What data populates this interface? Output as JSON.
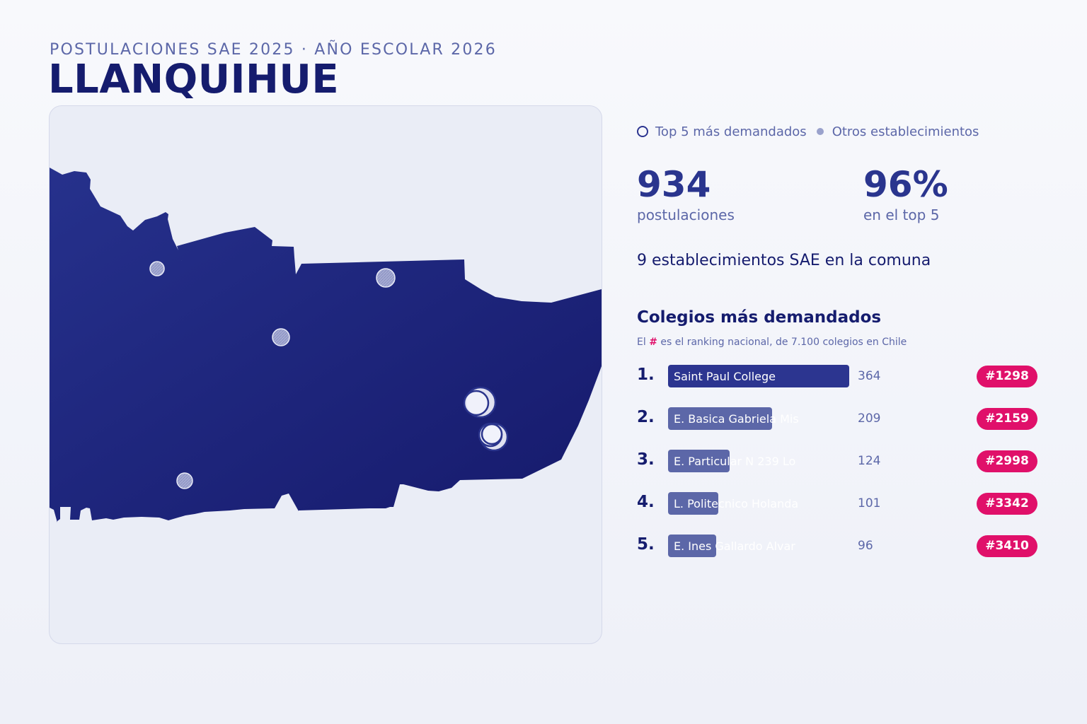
{
  "header": {
    "supertitle": "POSTULACIONES SAE 2025 · AÑO ESCOLAR 2026",
    "title": "LLANQUIHUE"
  },
  "legend": {
    "top5_label": "Top 5 más demandados",
    "others_label": "Otros establecimientos"
  },
  "stats": {
    "applications_value": "934",
    "applications_label": "postulaciones",
    "top5_share_value": "96%",
    "top5_share_label": "en el top 5",
    "establishments_line": "9 establecimientos SAE en la comuna"
  },
  "ranking": {
    "title": "Colegios más demandados",
    "note_prefix": "El",
    "note_hash": "#",
    "note_suffix": "es el ranking nacional, de 7.100 colegios en Chile",
    "max_value": 364,
    "items": [
      {
        "rank": "1.",
        "name": "Saint Paul College",
        "value": 364,
        "value_label": "364",
        "national_rank": "#1298"
      },
      {
        "rank": "2.",
        "name": "E. Basica Gabriela Mis",
        "value": 209,
        "value_label": "209",
        "national_rank": "#2159"
      },
      {
        "rank": "3.",
        "name": "E. Particular N 239 Lo",
        "value": 124,
        "value_label": "124",
        "national_rank": "#2998"
      },
      {
        "rank": "4.",
        "name": "L. Politecnico Holanda",
        "value": 101,
        "value_label": "101",
        "national_rank": "#3342"
      },
      {
        "rank": "5.",
        "name": "E. Ines Gallardo Alvar",
        "value": 96,
        "value_label": "96",
        "national_rank": "#3410"
      }
    ]
  },
  "colors": {
    "commune_fill": "#1f2580",
    "bar_top": "#2c3590",
    "bar_other": "#5c67a8",
    "badge": "#e0106a",
    "title": "#151c6e"
  }
}
